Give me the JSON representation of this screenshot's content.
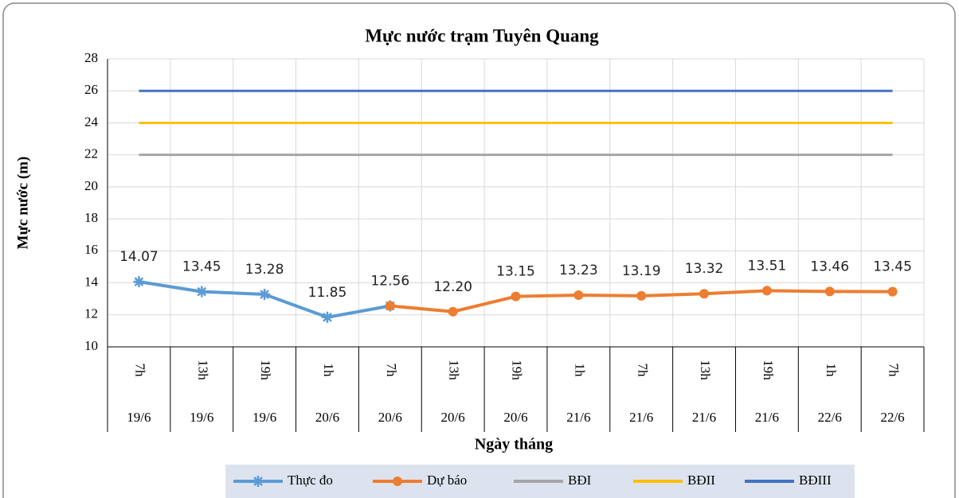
{
  "chart_data": {
    "type": "line",
    "title": "Mực nước trạm  Tuyên Quang",
    "y_label": "Mực nước (m)",
    "x_label": "Ngày tháng",
    "categories": [
      "7h",
      "13h",
      "19h",
      "1h",
      "7h",
      "13h",
      "19h",
      "1h",
      "7h",
      "13h",
      "19h",
      "1h",
      "7h"
    ],
    "dates": [
      "19/6",
      "19/6",
      "19/6",
      "20/6",
      "20/6",
      "20/6",
      "20/6",
      "21/6",
      "21/6",
      "21/6",
      "21/6",
      "22/6",
      "22/6"
    ],
    "series": [
      {
        "name": "Thực đo",
        "color": "#5b9bd5",
        "marker": "star",
        "values": [
          14.07,
          13.45,
          13.28,
          11.85,
          12.56,
          null,
          null,
          null,
          null,
          null,
          null,
          null,
          null
        ],
        "value_labels": [
          "14.07",
          "13.45",
          "13.28",
          "11.85",
          "12.56",
          null,
          null,
          null,
          null,
          null,
          null,
          null,
          null
        ]
      },
      {
        "name": "Dự báo",
        "color": "#ed7d31",
        "marker": "circle",
        "values": [
          null,
          null,
          null,
          null,
          12.56,
          12.2,
          13.15,
          13.23,
          13.19,
          13.32,
          13.51,
          13.46,
          13.45
        ],
        "value_labels": [
          null,
          null,
          null,
          null,
          null,
          "12.20",
          "13.15",
          "13.23",
          "13.19",
          "13.32",
          "13.51",
          "13.46",
          "13.45"
        ]
      },
      {
        "name": "BĐI",
        "color": "#a5a5a5",
        "marker": "none",
        "values": [
          22,
          22,
          22,
          22,
          22,
          22,
          22,
          22,
          22,
          22,
          22,
          22,
          22
        ]
      },
      {
        "name": "BĐII",
        "color": "#ffc000",
        "marker": "none",
        "values": [
          24,
          24,
          24,
          24,
          24,
          24,
          24,
          24,
          24,
          24,
          24,
          24,
          24
        ]
      },
      {
        "name": "BĐIII",
        "color": "#4472c4",
        "marker": "none",
        "values": [
          26,
          26,
          26,
          26,
          26,
          26,
          26,
          26,
          26,
          26,
          26,
          26,
          26
        ]
      }
    ],
    "ylim": [
      10,
      28
    ],
    "yticks": [
      10,
      12,
      14,
      16,
      18,
      20,
      22,
      24,
      26,
      28
    ],
    "grid": true,
    "legend": "bottom"
  }
}
